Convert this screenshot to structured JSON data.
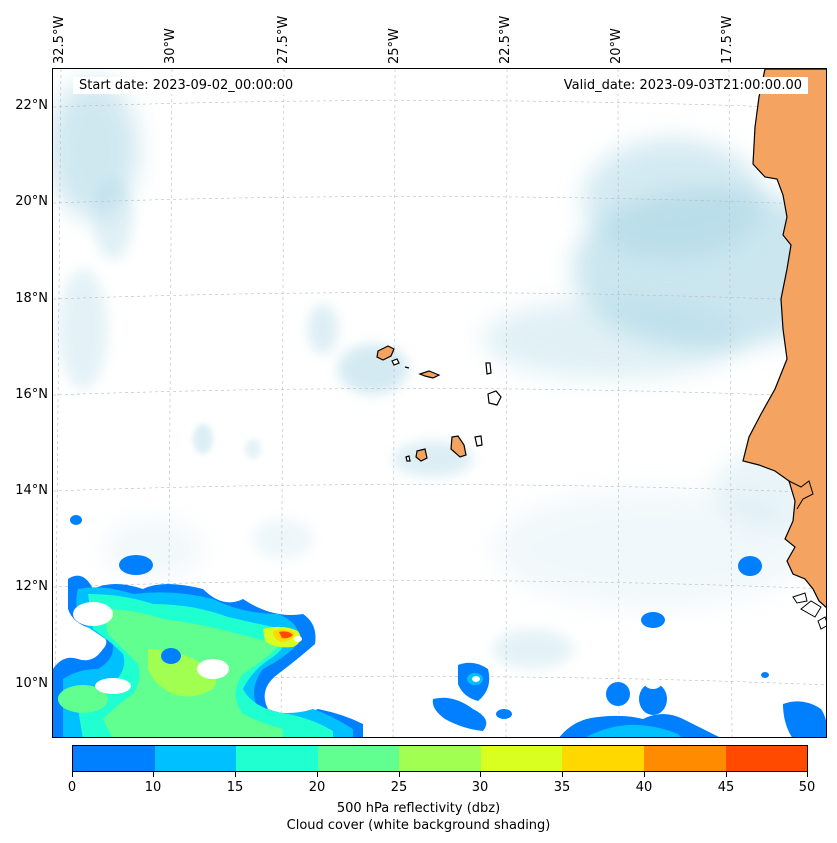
{
  "map": {
    "start_date": "Start date: 2023-09-02_00:00:00",
    "valid_date": "Valid_date: 2023-09-03T21:00:00.00",
    "lon_labels": [
      "32.5°W",
      "30°W",
      "27.5°W",
      "25°W",
      "22.5°W",
      "20°W",
      "17.5°W"
    ],
    "lat_labels": [
      "22°N",
      "20°N",
      "18°N",
      "16°N",
      "14°N",
      "12°N",
      "10°N"
    ],
    "land_color": "#f4a460",
    "coast_color": "#000000",
    "cloud_color": "#a9d6e5"
  },
  "colorbar": {
    "ticks": [
      "0",
      "10",
      "15",
      "20",
      "25",
      "30",
      "35",
      "40",
      "45",
      "50"
    ],
    "colors": [
      "#0080ff",
      "#00c0ff",
      "#20ffd0",
      "#60ff90",
      "#a0ff50",
      "#d8ff20",
      "#ffd800",
      "#ff8c00",
      "#ff4a00"
    ],
    "title_line1": "500 hPa reflectivity (dbz)",
    "title_line2": "Cloud cover (white background shading)"
  }
}
